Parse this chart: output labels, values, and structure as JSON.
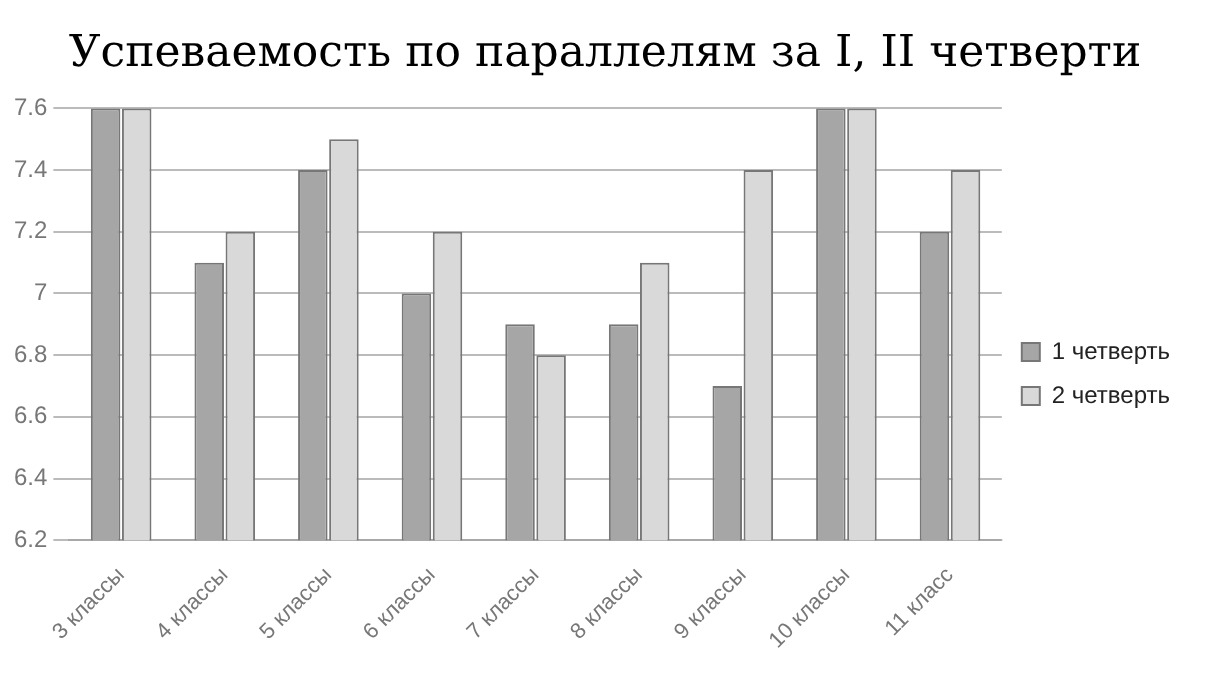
{
  "chart_data": {
    "type": "bar",
    "title": "Успеваемость по параллелям за I, II  четверти",
    "categories": [
      "3 классы",
      "4 классы",
      "5 классы",
      "6 классы",
      "7 классы",
      "8 классы",
      "9 классы",
      "10 классы",
      "11 класс"
    ],
    "series": [
      {
        "name": "1 четверть",
        "color": "#a6a6a6",
        "values": [
          7.6,
          7.1,
          7.4,
          7.0,
          6.9,
          6.9,
          6.7,
          7.6,
          7.2
        ]
      },
      {
        "name": "2 четверть",
        "color": "#d9d9d9",
        "values": [
          7.6,
          7.2,
          7.5,
          7.2,
          6.8,
          7.1,
          7.4,
          7.6,
          7.4
        ]
      }
    ],
    "ylim": [
      6.2,
      7.6
    ],
    "yticks": [
      6.2,
      6.4,
      6.6,
      6.8,
      7,
      7.2,
      7.4,
      7.6
    ],
    "grid": "y",
    "legend": "right"
  }
}
